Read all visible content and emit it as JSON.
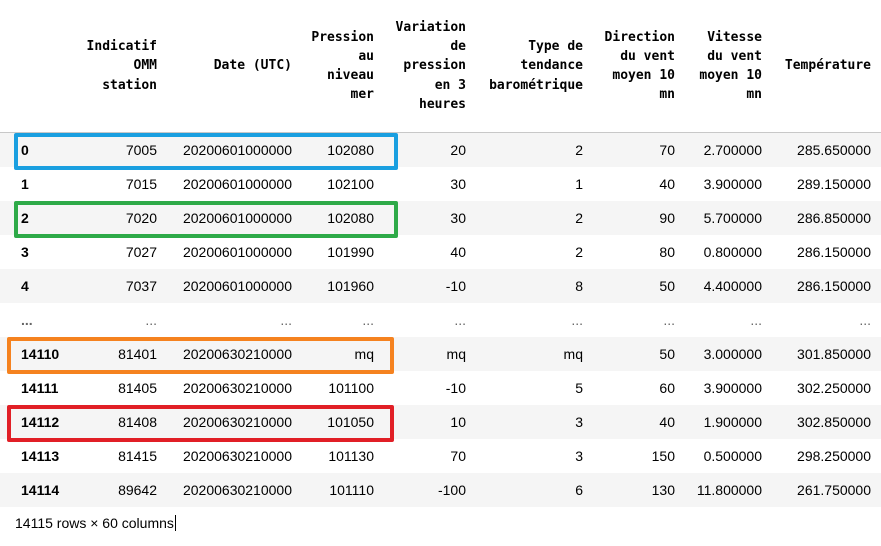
{
  "columns": [
    "",
    "Indicatif\nOMM\nstation",
    "Date (UTC)",
    "Pression\nau\nniveau\nmer",
    "Variation\nde\npression\nen 3\nheures",
    "Type de\ntendance\nbarométrique",
    "Direction\ndu vent\nmoyen 10\nmn",
    "Vitesse\ndu vent\nmoyen 10\nmn",
    "Température"
  ],
  "rows": [
    [
      "0",
      "7005",
      "20200601000000",
      "102080",
      "20",
      "2",
      "70",
      "2.700000",
      "285.650000"
    ],
    [
      "1",
      "7015",
      "20200601000000",
      "102100",
      "30",
      "1",
      "40",
      "3.900000",
      "289.150000"
    ],
    [
      "2",
      "7020",
      "20200601000000",
      "102080",
      "30",
      "2",
      "90",
      "5.700000",
      "286.850000"
    ],
    [
      "3",
      "7027",
      "20200601000000",
      "101990",
      "40",
      "2",
      "80",
      "0.800000",
      "286.150000"
    ],
    [
      "4",
      "7037",
      "20200601000000",
      "101960",
      "-10",
      "8",
      "50",
      "4.400000",
      "286.150000"
    ],
    [
      "...",
      "...",
      "...",
      "...",
      "...",
      "...",
      "...",
      "...",
      "..."
    ],
    [
      "14110",
      "81401",
      "20200630210000",
      "mq",
      "mq",
      "mq",
      "50",
      "3.000000",
      "301.850000"
    ],
    [
      "14111",
      "81405",
      "20200630210000",
      "101100",
      "-10",
      "5",
      "60",
      "3.900000",
      "302.250000"
    ],
    [
      "14112",
      "81408",
      "20200630210000",
      "101050",
      "10",
      "3",
      "40",
      "1.900000",
      "302.850000"
    ],
    [
      "14113",
      "81415",
      "20200630210000",
      "101130",
      "70",
      "3",
      "150",
      "0.500000",
      "298.250000"
    ],
    [
      "14114",
      "89642",
      "20200630210000",
      "101110",
      "-100",
      "6",
      "130",
      "11.800000",
      "261.750000"
    ]
  ],
  "footer": "14115 rows × 60 columns",
  "highlights": [
    {
      "row": 0,
      "color": "#1a9fe0"
    },
    {
      "row": 2,
      "color": "#2eaa48"
    },
    {
      "row": 6,
      "color": "#f5821f"
    },
    {
      "row": 8,
      "color": "#e11f26"
    }
  ]
}
